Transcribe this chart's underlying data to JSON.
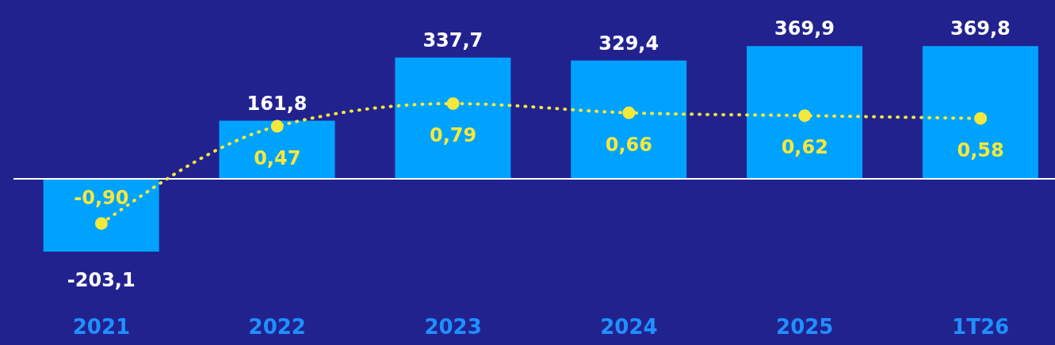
{
  "chart_data": {
    "type": "bar",
    "categories": [
      "2021",
      "2022",
      "2023",
      "2024",
      "2025",
      "1T26"
    ],
    "series": [
      {
        "color": "#00a2ff",
        "values": [
          -203.1,
          161.8,
          337.7,
          329.4,
          369.9,
          369.8
        ],
        "value_labels": [
          "-203,1",
          "161,8",
          "337,7",
          "329,4",
          "369,9",
          "369,8"
        ]
      },
      {
        "type": "line",
        "axis": "y2",
        "color": "#f5e83c",
        "marker": "circle",
        "line_style": "dotted",
        "values": [
          -0.9,
          0.47,
          0.79,
          0.66,
          0.62,
          0.58
        ],
        "value_labels": [
          "-0,90",
          "0,47",
          "0,79",
          "0,66",
          "0,62",
          "0,58"
        ]
      }
    ],
    "tick_labels": "x"
  }
}
